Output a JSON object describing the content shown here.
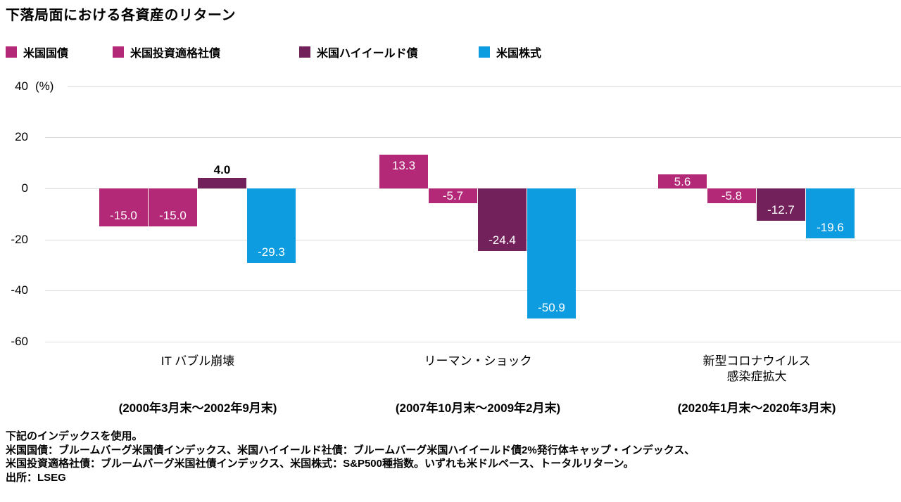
{
  "title": "下落局面における各資産のリターン",
  "chart_data": {
    "type": "bar",
    "title": "下落局面における各資産のリターン",
    "ylabel": "(%)",
    "ylim": [
      -60,
      40
    ],
    "yticks": [
      40,
      20,
      0,
      -20,
      -40,
      -60
    ],
    "grid": "horizontal",
    "legend_position": "top",
    "categories": [
      {
        "name_lines": [
          "IT バブル崩壊"
        ],
        "period": "(2000年3月末～2002年9月末)"
      },
      {
        "name_lines": [
          "リーマン・ショック"
        ],
        "period": "(2007年10月末～2009年2月末)"
      },
      {
        "name_lines": [
          "新型コロナウイルス",
          "感染症拡大"
        ],
        "period": "(2020年1月末～2020年3月末)"
      }
    ],
    "series": [
      {
        "name": "米国国債",
        "color": "#b42878",
        "values": [
          -15.0,
          13.3,
          5.6
        ],
        "labels": [
          "-15.0",
          "13.3",
          "5.6"
        ]
      },
      {
        "name": "米国投資適格社債",
        "color": "#b42878",
        "values": [
          -15.0,
          -5.7,
          -5.8
        ],
        "labels": [
          "-15.0",
          "-5.7",
          "-5.8"
        ]
      },
      {
        "name": "米国ハイイールド債",
        "color": "#72215a",
        "values": [
          4.0,
          -24.4,
          -12.7
        ],
        "labels": [
          "4.0",
          "-24.4",
          "-12.7"
        ]
      },
      {
        "name": "米国株式",
        "color": "#0d9cdf",
        "values": [
          -29.3,
          -50.9,
          -19.6
        ],
        "labels": [
          "-29.3",
          "-50.9",
          "-19.6"
        ]
      }
    ]
  },
  "footnote": {
    "lines": [
      "下記のインデックスを使用。",
      "米国国債：ブルームバーグ米国債インデックス、米国ハイイールド社債：ブルームバーグ米国ハイイールド債2%発行体キャップ・インデックス、",
      "米国投資適格社債：ブルームバーグ米国社債インデックス、米国株式：S&P500種指数。いずれも米ドルベース、トータルリターン。",
      "出所：LSEG"
    ]
  }
}
